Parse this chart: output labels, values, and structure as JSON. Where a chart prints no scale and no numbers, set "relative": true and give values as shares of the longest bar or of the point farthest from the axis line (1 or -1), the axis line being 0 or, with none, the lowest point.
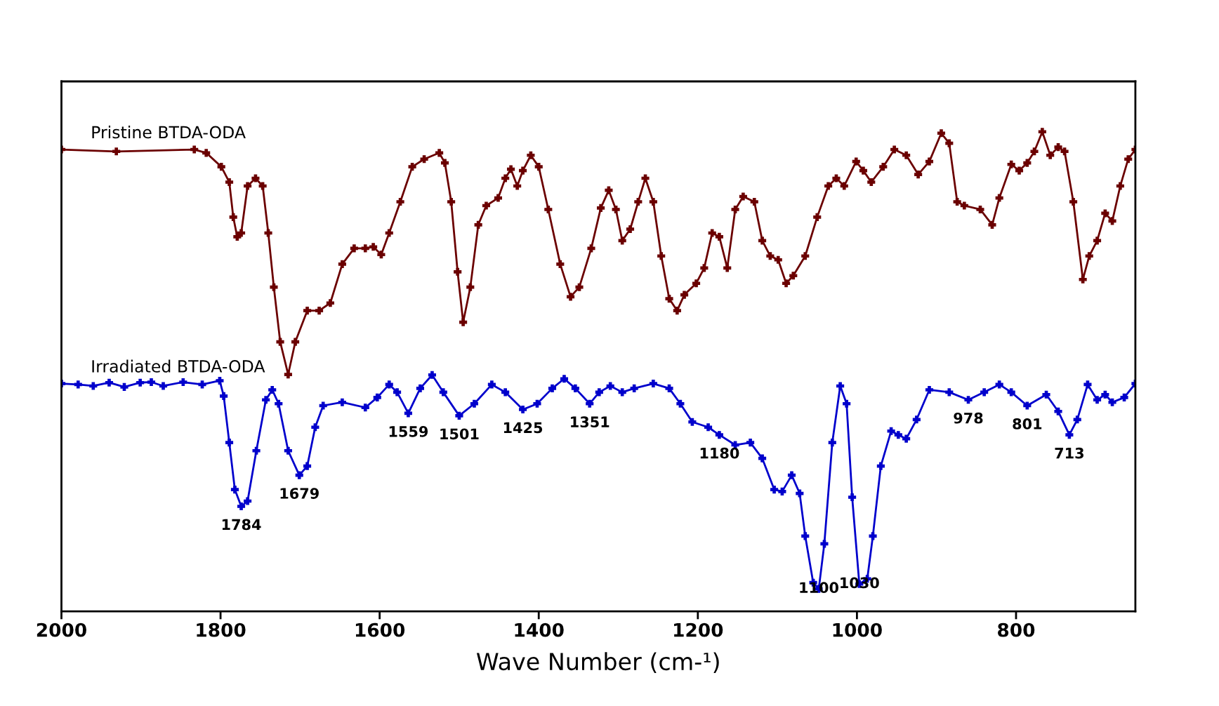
{
  "chart_data": {
    "type": "line",
    "relative": true,
    "xlabel": "Wave Number (cm-¹)",
    "xlim": [
      2000,
      650
    ],
    "xticks": [
      2000,
      1800,
      1600,
      1400,
      1200,
      1000,
      800
    ],
    "marker": "cross",
    "line_style": "solid",
    "grid": false,
    "series": [
      {
        "name": "Pristine BTDA-ODA",
        "color": "#6b0000",
        "x": [
          2000,
          1931,
          1833,
          1818,
          1799,
          1789,
          1784,
          1779,
          1774,
          1766,
          1756,
          1747,
          1740,
          1733,
          1725,
          1715,
          1706,
          1691,
          1676,
          1662,
          1647,
          1632,
          1618,
          1608,
          1598,
          1588,
          1574,
          1559,
          1544,
          1525,
          1518,
          1510,
          1502,
          1495,
          1486,
          1476,
          1466,
          1451,
          1442,
          1435,
          1427,
          1420,
          1410,
          1400,
          1388,
          1373,
          1360,
          1349,
          1334,
          1322,
          1312,
          1303,
          1295,
          1285,
          1275,
          1266,
          1256,
          1246,
          1236,
          1226,
          1217,
          1202,
          1192,
          1182,
          1173,
          1163,
          1153,
          1143,
          1129,
          1119,
          1109,
          1099,
          1089,
          1080,
          1065,
          1050,
          1036,
          1026,
          1016,
          1001,
          992,
          982,
          967,
          953,
          938,
          923,
          909,
          894,
          884,
          874,
          865,
          845,
          830,
          821,
          806,
          796,
          786,
          777,
          767,
          757,
          747,
          739,
          728,
          716,
          708,
          698,
          688,
          679,
          669,
          659,
          650
        ],
        "values": [
          0.963,
          0.959,
          0.963,
          0.956,
          0.927,
          0.895,
          0.822,
          0.781,
          0.789,
          0.887,
          0.903,
          0.887,
          0.789,
          0.676,
          0.562,
          0.494,
          0.562,
          0.627,
          0.627,
          0.643,
          0.724,
          0.757,
          0.757,
          0.76,
          0.744,
          0.789,
          0.854,
          0.927,
          0.943,
          0.956,
          0.935,
          0.854,
          0.708,
          0.603,
          0.676,
          0.806,
          0.846,
          0.862,
          0.903,
          0.922,
          0.887,
          0.919,
          0.951,
          0.927,
          0.838,
          0.724,
          0.656,
          0.676,
          0.757,
          0.841,
          0.878,
          0.838,
          0.773,
          0.797,
          0.854,
          0.903,
          0.854,
          0.741,
          0.652,
          0.627,
          0.66,
          0.684,
          0.716,
          0.789,
          0.781,
          0.716,
          0.838,
          0.865,
          0.854,
          0.773,
          0.741,
          0.733,
          0.684,
          0.7,
          0.741,
          0.822,
          0.887,
          0.903,
          0.887,
          0.938,
          0.919,
          0.895,
          0.927,
          0.963,
          0.951,
          0.911,
          0.938,
          0.997,
          0.976,
          0.854,
          0.846,
          0.838,
          0.806,
          0.862,
          0.932,
          0.919,
          0.935,
          0.959,
          1.0,
          0.951,
          0.968,
          0.959,
          0.854,
          0.692,
          0.741,
          0.773,
          0.83,
          0.814,
          0.887,
          0.943,
          0.963
        ]
      },
      {
        "name": "Irradiated BTDA-ODA",
        "color": "#0000cc",
        "x": [
          2000,
          1979,
          1960,
          1940,
          1921,
          1901,
          1887,
          1872,
          1847,
          1823,
          1801,
          1796,
          1789,
          1782,
          1774,
          1766,
          1755,
          1743,
          1735,
          1727,
          1715,
          1701,
          1691,
          1681,
          1671,
          1647,
          1618,
          1603,
          1588,
          1578,
          1564,
          1549,
          1534,
          1520,
          1500,
          1481,
          1459,
          1442,
          1420,
          1402,
          1383,
          1368,
          1354,
          1336,
          1324,
          1310,
          1295,
          1280,
          1256,
          1236,
          1222,
          1207,
          1187,
          1173,
          1153,
          1134,
          1119,
          1104,
          1094,
          1082,
          1072,
          1065,
          1055,
          1048,
          1041,
          1031,
          1021,
          1013,
          1006,
          997,
          987,
          980,
          970,
          957,
          948,
          938,
          925,
          909,
          884,
          860,
          840,
          821,
          806,
          786,
          762,
          747,
          733,
          723,
          710,
          698,
          688,
          679,
          664,
          650
        ],
        "values": [
          0.475,
          0.473,
          0.47,
          0.477,
          0.468,
          0.477,
          0.478,
          0.47,
          0.478,
          0.473,
          0.481,
          0.449,
          0.352,
          0.254,
          0.219,
          0.23,
          0.335,
          0.441,
          0.462,
          0.433,
          0.335,
          0.284,
          0.303,
          0.384,
          0.429,
          0.436,
          0.425,
          0.446,
          0.473,
          0.457,
          0.413,
          0.465,
          0.493,
          0.457,
          0.408,
          0.433,
          0.473,
          0.457,
          0.421,
          0.433,
          0.465,
          0.485,
          0.465,
          0.433,
          0.457,
          0.47,
          0.457,
          0.465,
          0.475,
          0.465,
          0.433,
          0.395,
          0.384,
          0.368,
          0.347,
          0.352,
          0.319,
          0.254,
          0.25,
          0.284,
          0.246,
          0.157,
          0.06,
          0.047,
          0.141,
          0.352,
          0.47,
          0.433,
          0.238,
          0.057,
          0.068,
          0.157,
          0.303,
          0.376,
          0.368,
          0.36,
          0.4,
          0.462,
          0.457,
          0.441,
          0.457,
          0.473,
          0.457,
          0.429,
          0.452,
          0.417,
          0.368,
          0.4,
          0.473,
          0.441,
          0.452,
          0.436,
          0.446,
          0.475
        ]
      }
    ],
    "annotations": [
      {
        "text": "1784",
        "x": 1774,
        "y": 0.219
      },
      {
        "text": "1679",
        "x": 1701,
        "y": 0.284
      },
      {
        "text": "1559",
        "x": 1564,
        "y": 0.413
      },
      {
        "text": "1501",
        "x": 1500,
        "y": 0.408
      },
      {
        "text": "1425",
        "x": 1420,
        "y": 0.421
      },
      {
        "text": "1351",
        "x": 1336,
        "y": 0.433
      },
      {
        "text": "1180",
        "x": 1173,
        "y": 0.368
      },
      {
        "text": "1100",
        "x": 1048,
        "y": 0.047
      },
      {
        "text": "1030",
        "x": 997,
        "y": 0.057
      },
      {
        "text": "978",
        "x": 860,
        "y": 0.441
      },
      {
        "text": "801",
        "x": 786,
        "y": 0.429
      },
      {
        "text": "713",
        "x": 733,
        "y": 0.368
      }
    ]
  }
}
